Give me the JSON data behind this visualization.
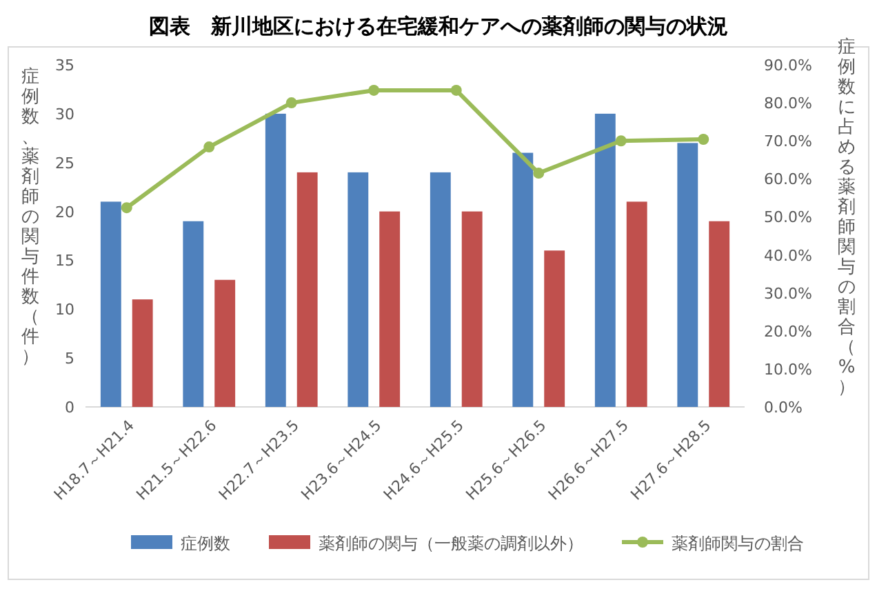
{
  "chart_data": {
    "type": "bar",
    "title": "図表　新川地区における在宅緩和ケアへの薬剤師の関与の状況",
    "categories": [
      "H18.7～H21.4",
      "H21.5～H22.6",
      "H22.7～H23.5",
      "H23.6～H24.5",
      "H24.6～H25.5",
      "H25.6～H26.5",
      "H26.6～H27.5",
      "H27.6～H28.5"
    ],
    "series": [
      {
        "name": "症例数",
        "color": "#4f81bd",
        "values": [
          21,
          19,
          30,
          24,
          24,
          26,
          30,
          27
        ]
      },
      {
        "name": "薬剤師の関与（一般薬の調剤以外）",
        "color": "#c0504d",
        "values": [
          11,
          13,
          24,
          20,
          20,
          16,
          21,
          19
        ]
      },
      {
        "name": "薬剤師関与の割合",
        "type": "line",
        "axis": "y2",
        "color": "#9bbb59",
        "marker": "circle",
        "values": [
          52.4,
          68.4,
          80.0,
          83.3,
          83.3,
          61.5,
          70.0,
          70.4
        ]
      }
    ],
    "ylabel": "症例数、薬剤師の関与件数（件）",
    "y2label": "症例数に占める薬剤師関与の割合（%）",
    "ylim": [
      0,
      35
    ],
    "yticks": [
      0,
      5,
      10,
      15,
      20,
      25,
      30,
      35
    ],
    "y2lim": [
      0,
      90
    ],
    "y2ticks": [
      {
        "value": 0,
        "label": "0.0%"
      },
      {
        "value": 10,
        "label": "10.0%"
      },
      {
        "value": 20,
        "label": "20.0%"
      },
      {
        "value": 30,
        "label": "30.0%"
      },
      {
        "value": 40,
        "label": "40.0%"
      },
      {
        "value": 50,
        "label": "50.0%"
      },
      {
        "value": 60,
        "label": "60.0%"
      },
      {
        "value": 70,
        "label": "70.0%"
      },
      {
        "value": 80,
        "label": "80.0%"
      },
      {
        "value": 90,
        "label": "90.0%"
      }
    ],
    "grid": false,
    "legend": "bottom"
  }
}
